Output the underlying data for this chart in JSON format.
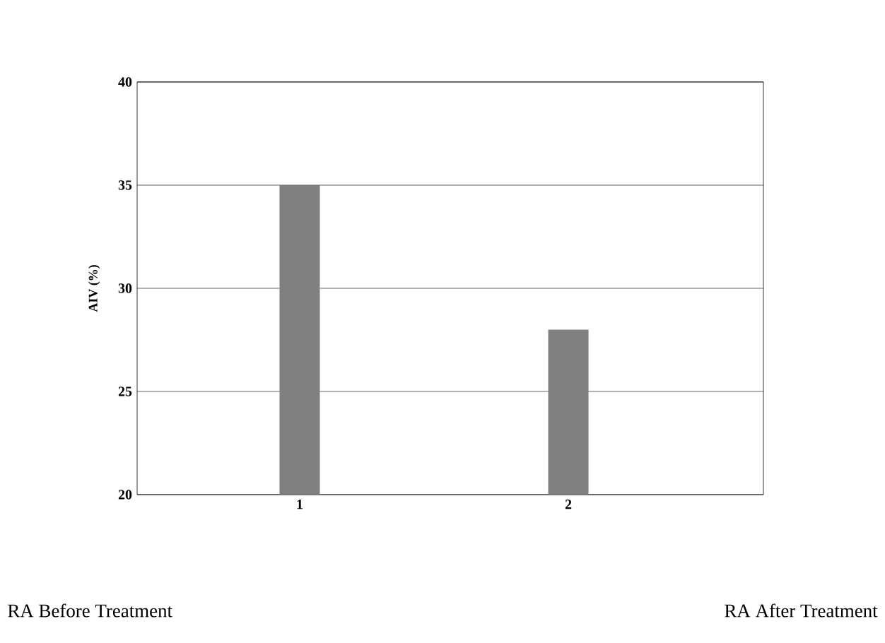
{
  "chart_data": {
    "type": "bar",
    "ylabel": "AIV (%)",
    "categories": [
      "1",
      "2"
    ],
    "values": [
      35,
      28
    ],
    "color": "#808080",
    "ylim": [
      20,
      40
    ],
    "yticks": [
      20,
      25,
      30,
      35,
      40
    ],
    "grid": "y",
    "annotations": [
      "RA Before Treatment",
      "RA After Treatment"
    ]
  }
}
